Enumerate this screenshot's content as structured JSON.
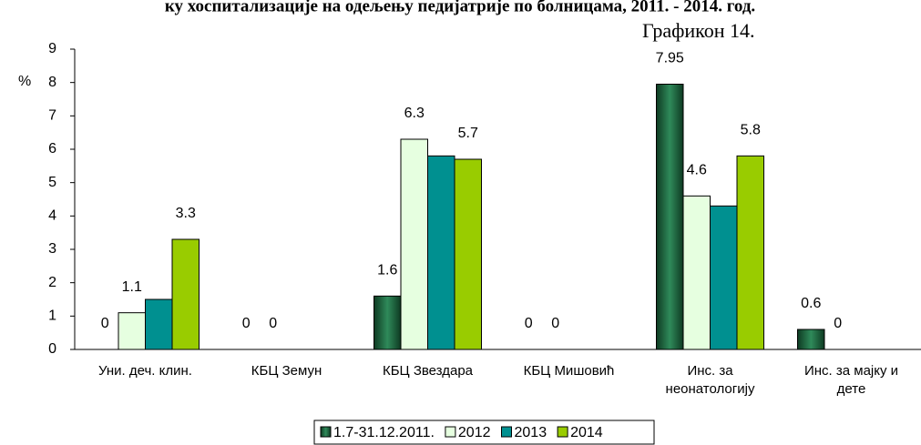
{
  "chart_data": {
    "type": "bar",
    "title": "ку хоспитализације на одељењу педијатрије по болницама, 2011. - 2014. год.",
    "subtitle": "Графикон 14.",
    "y_label": "%",
    "categories": [
      "Уни. деч. клин.",
      "КБЦ Земун",
      "КБЦ Звездара",
      "КБЦ Мишовић",
      "Инс. за\nнеонатологију",
      "Инс. за мајку и\nдете"
    ],
    "series": [
      {
        "name": "1.7-31.12.2011.",
        "color": "#1f5f3f",
        "values": [
          0,
          0,
          1.6,
          0,
          7.95,
          0.6
        ],
        "value_labels": [
          "0",
          "0",
          "1.6",
          "0",
          "7.95",
          "0.6"
        ]
      },
      {
        "name": "2012",
        "color": "#e6ffe0",
        "values": [
          1.1,
          0,
          6.3,
          0,
          4.6,
          0
        ],
        "value_labels": [
          "1.1",
          "0",
          "6.3",
          "0",
          "4.6",
          "0"
        ]
      },
      {
        "name": "2013",
        "color": "#009090",
        "values": [
          1.5,
          null,
          5.8,
          null,
          4.3,
          null
        ]
      },
      {
        "name": "2014",
        "color": "#99cc00",
        "values": [
          3.3,
          null,
          5.7,
          null,
          5.8,
          null
        ],
        "value_labels": [
          "3.3",
          null,
          "5.7",
          null,
          "5.8",
          null
        ]
      }
    ],
    "ylim": [
      0,
      9
    ],
    "yticks": [
      0,
      1,
      2,
      3,
      4,
      5,
      6,
      7,
      8,
      9
    ],
    "grid": false
  }
}
